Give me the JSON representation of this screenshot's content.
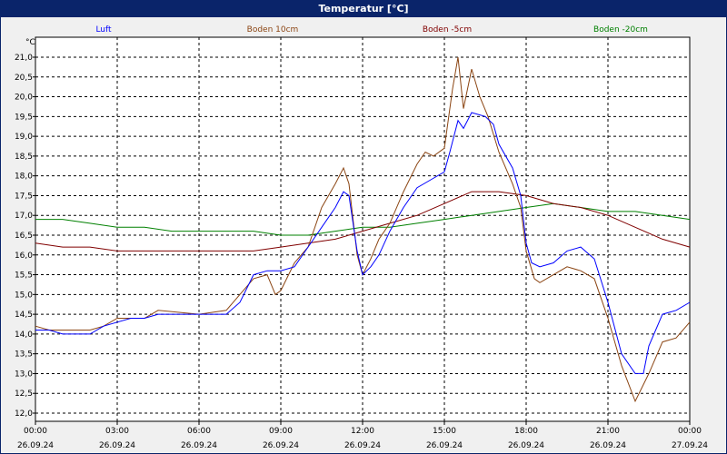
{
  "window": {
    "title": "Temperatur [°C]"
  },
  "chart_data": {
    "type": "line",
    "title": "Temperatur [°C]",
    "ylabel": "°C",
    "xlabel": "",
    "ylim": [
      12.0,
      21.0
    ],
    "yticks": [
      "12,0",
      "12,5",
      "13,0",
      "13,5",
      "14,0",
      "14,5",
      "15,0",
      "15,5",
      "16,0",
      "16,5",
      "17,0",
      "17,5",
      "18,0",
      "18,5",
      "19,0",
      "19,5",
      "20,0",
      "20,5",
      "21,0"
    ],
    "xticks": [
      {
        "time": "00:00",
        "date": "26.09.24"
      },
      {
        "time": "03:00",
        "date": "26.09.24"
      },
      {
        "time": "06:00",
        "date": "26.09.24"
      },
      {
        "time": "09:00",
        "date": "26.09.24"
      },
      {
        "time": "12:00",
        "date": "26.09.24"
      },
      {
        "time": "15:00",
        "date": "26.09.24"
      },
      {
        "time": "18:00",
        "date": "26.09.24"
      },
      {
        "time": "21:00",
        "date": "26.09.24"
      },
      {
        "time": "00:00",
        "date": "27.09.24"
      }
    ],
    "grid": true,
    "legend_position": "top",
    "series": [
      {
        "name": "Luft",
        "color": "#0000ff",
        "points": [
          [
            0,
            14.1
          ],
          [
            0.5,
            14.1
          ],
          [
            1,
            14.0
          ],
          [
            2,
            14.0
          ],
          [
            2.5,
            14.2
          ],
          [
            3,
            14.3
          ],
          [
            3.5,
            14.4
          ],
          [
            4,
            14.4
          ],
          [
            4.5,
            14.5
          ],
          [
            6,
            14.5
          ],
          [
            7,
            14.5
          ],
          [
            7.5,
            14.8
          ],
          [
            8,
            15.5
          ],
          [
            8.5,
            15.6
          ],
          [
            9,
            15.6
          ],
          [
            9.5,
            15.7
          ],
          [
            10,
            16.2
          ],
          [
            10.5,
            16.7
          ],
          [
            11,
            17.2
          ],
          [
            11.3,
            17.6
          ],
          [
            11.5,
            17.5
          ],
          [
            11.8,
            16.1
          ],
          [
            12,
            15.5
          ],
          [
            12.3,
            15.7
          ],
          [
            12.6,
            16.0
          ],
          [
            13,
            16.6
          ],
          [
            13.5,
            17.2
          ],
          [
            14,
            17.7
          ],
          [
            14.5,
            17.9
          ],
          [
            15,
            18.1
          ],
          [
            15.2,
            18.6
          ],
          [
            15.5,
            19.4
          ],
          [
            15.7,
            19.2
          ],
          [
            16,
            19.6
          ],
          [
            16.5,
            19.5
          ],
          [
            16.8,
            19.3
          ],
          [
            17,
            18.8
          ],
          [
            17.5,
            18.2
          ],
          [
            17.8,
            17.5
          ],
          [
            18,
            16.3
          ],
          [
            18.2,
            15.8
          ],
          [
            18.5,
            15.7
          ],
          [
            19,
            15.8
          ],
          [
            19.5,
            16.1
          ],
          [
            20,
            16.2
          ],
          [
            20.5,
            15.9
          ],
          [
            21,
            14.8
          ],
          [
            21.5,
            13.5
          ],
          [
            22,
            13.0
          ],
          [
            22.3,
            13.0
          ],
          [
            22.5,
            13.7
          ],
          [
            23,
            14.5
          ],
          [
            23.5,
            14.6
          ],
          [
            24,
            14.8
          ]
        ]
      },
      {
        "name": "Boden 10cm",
        "color": "#8b4513",
        "points": [
          [
            0,
            14.2
          ],
          [
            0.5,
            14.1
          ],
          [
            1,
            14.1
          ],
          [
            2,
            14.1
          ],
          [
            2.5,
            14.2
          ],
          [
            3,
            14.4
          ],
          [
            3.5,
            14.4
          ],
          [
            4,
            14.4
          ],
          [
            4.5,
            14.6
          ],
          [
            6,
            14.5
          ],
          [
            7,
            14.6
          ],
          [
            7.5,
            15.0
          ],
          [
            8,
            15.4
          ],
          [
            8.5,
            15.5
          ],
          [
            8.8,
            15.0
          ],
          [
            9,
            15.1
          ],
          [
            9.5,
            15.8
          ],
          [
            10,
            16.2
          ],
          [
            10.5,
            17.2
          ],
          [
            11,
            17.8
          ],
          [
            11.3,
            18.2
          ],
          [
            11.5,
            17.8
          ],
          [
            11.8,
            16.0
          ],
          [
            12,
            15.5
          ],
          [
            12.3,
            15.9
          ],
          [
            12.6,
            16.4
          ],
          [
            13,
            16.8
          ],
          [
            13.5,
            17.6
          ],
          [
            14,
            18.3
          ],
          [
            14.3,
            18.6
          ],
          [
            14.6,
            18.5
          ],
          [
            15,
            18.7
          ],
          [
            15.3,
            20.2
          ],
          [
            15.5,
            21.0
          ],
          [
            15.7,
            19.7
          ],
          [
            16,
            20.7
          ],
          [
            16.3,
            20.0
          ],
          [
            16.6,
            19.5
          ],
          [
            17,
            18.6
          ],
          [
            17.5,
            17.8
          ],
          [
            17.8,
            17.2
          ],
          [
            18,
            16.1
          ],
          [
            18.3,
            15.4
          ],
          [
            18.5,
            15.3
          ],
          [
            19,
            15.5
          ],
          [
            19.5,
            15.7
          ],
          [
            20,
            15.6
          ],
          [
            20.5,
            15.4
          ],
          [
            21,
            14.4
          ],
          [
            21.5,
            13.2
          ],
          [
            22,
            12.3
          ],
          [
            22.5,
            13.0
          ],
          [
            23,
            13.8
          ],
          [
            23.5,
            13.9
          ],
          [
            24,
            14.3
          ]
        ]
      },
      {
        "name": "Boden -5cm",
        "color": "#800000",
        "points": [
          [
            0,
            16.3
          ],
          [
            1,
            16.2
          ],
          [
            2,
            16.2
          ],
          [
            3,
            16.1
          ],
          [
            4,
            16.1
          ],
          [
            6,
            16.1
          ],
          [
            7,
            16.1
          ],
          [
            8,
            16.1
          ],
          [
            9,
            16.2
          ],
          [
            10,
            16.3
          ],
          [
            11,
            16.4
          ],
          [
            12,
            16.6
          ],
          [
            13,
            16.8
          ],
          [
            14,
            17.0
          ],
          [
            15,
            17.3
          ],
          [
            16,
            17.6
          ],
          [
            17,
            17.6
          ],
          [
            18,
            17.5
          ],
          [
            19,
            17.3
          ],
          [
            20,
            17.2
          ],
          [
            21,
            17.0
          ],
          [
            22,
            16.7
          ],
          [
            23,
            16.4
          ],
          [
            24,
            16.2
          ]
        ]
      },
      {
        "name": "Boden -20cm",
        "color": "#008000",
        "points": [
          [
            0,
            16.9
          ],
          [
            1,
            16.9
          ],
          [
            2,
            16.8
          ],
          [
            3,
            16.7
          ],
          [
            4,
            16.7
          ],
          [
            5,
            16.6
          ],
          [
            6,
            16.6
          ],
          [
            7,
            16.6
          ],
          [
            8,
            16.6
          ],
          [
            9,
            16.5
          ],
          [
            10,
            16.5
          ],
          [
            11,
            16.6
          ],
          [
            12,
            16.7
          ],
          [
            13,
            16.7
          ],
          [
            14,
            16.8
          ],
          [
            15,
            16.9
          ],
          [
            16,
            17.0
          ],
          [
            17,
            17.1
          ],
          [
            18,
            17.2
          ],
          [
            19,
            17.3
          ],
          [
            20,
            17.2
          ],
          [
            21,
            17.1
          ],
          [
            22,
            17.1
          ],
          [
            23,
            17.0
          ],
          [
            24,
            16.9
          ]
        ]
      }
    ]
  }
}
